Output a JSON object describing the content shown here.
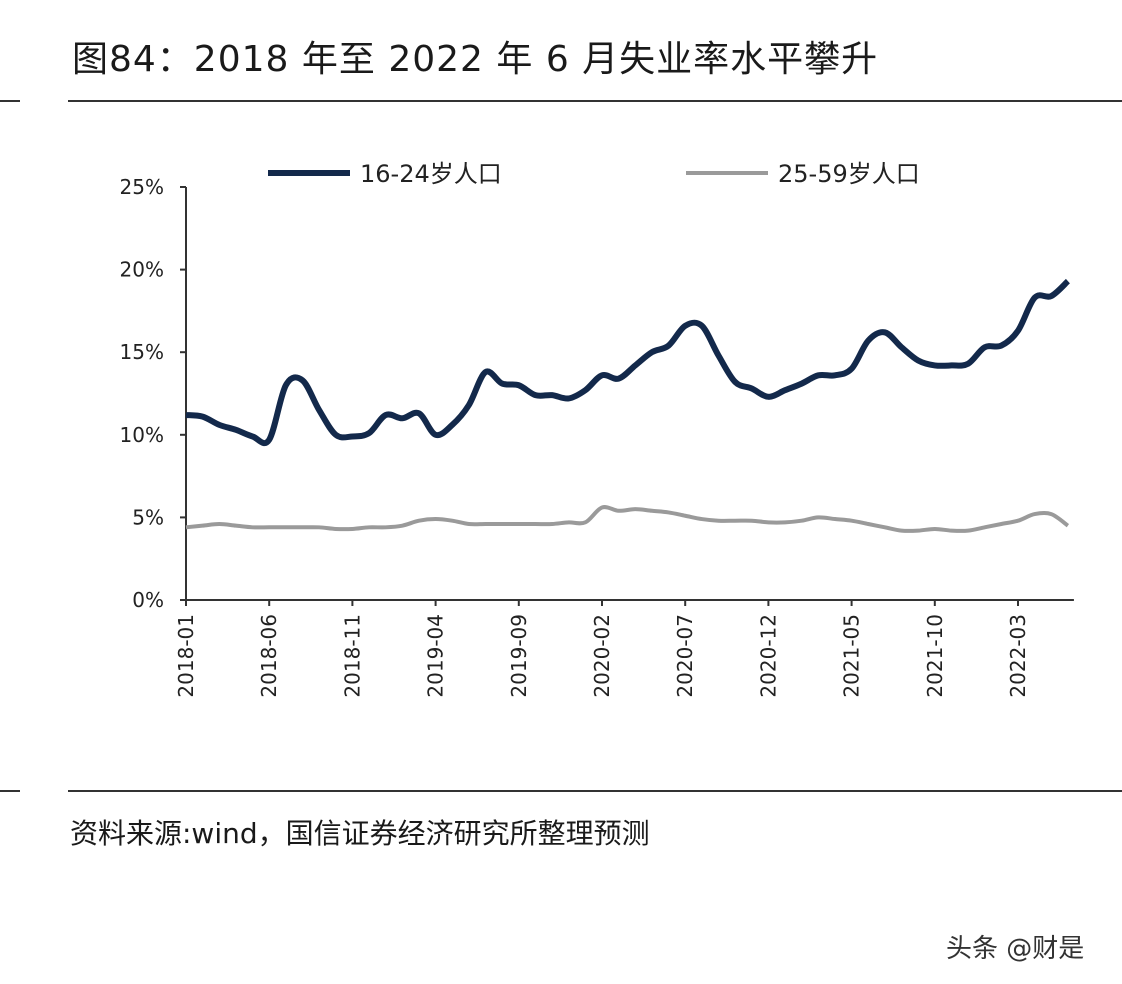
{
  "title": "图84：2018 年至 2022 年 6 月失业率水平攀升",
  "source": "资料来源:wind，国信证券经济研究所整理预测",
  "watermark": "头条 @财是",
  "chart_data": {
    "type": "line",
    "ylim": [
      0,
      25
    ],
    "yticks": [
      "0%",
      "5%",
      "10%",
      "15%",
      "20%",
      "25%"
    ],
    "ytick_values": [
      0,
      5,
      10,
      15,
      20,
      25
    ],
    "xticks": [
      "2018-01",
      "2018-06",
      "2018-11",
      "2019-04",
      "2019-09",
      "2020-02",
      "2020-07",
      "2020-12",
      "2021-05",
      "2021-10",
      "2022-03"
    ],
    "x_start": "2018-01",
    "x_end": "2022-06",
    "legend_position": "top",
    "grid": false,
    "series": [
      {
        "name": "16-24岁人口",
        "color": "#13294b",
        "values": [
          11.2,
          11.1,
          10.6,
          10.3,
          9.9,
          9.7,
          13.0,
          13.3,
          11.5,
          10.0,
          9.9,
          10.1,
          11.2,
          11.0,
          11.3,
          10.0,
          10.6,
          11.8,
          13.8,
          13.1,
          13.0,
          12.4,
          12.4,
          12.2,
          12.7,
          13.6,
          13.4,
          14.2,
          15.0,
          15.4,
          16.6,
          16.6,
          14.8,
          13.2,
          12.8,
          12.3,
          12.7,
          13.1,
          13.6,
          13.6,
          14.0,
          15.7,
          16.2,
          15.3,
          14.5,
          14.2,
          14.2,
          14.3,
          15.3,
          15.4,
          16.3,
          18.3,
          18.4,
          19.3
        ]
      },
      {
        "name": "25-59岁人口",
        "color": "#9a9a9a",
        "values": [
          4.4,
          4.5,
          4.6,
          4.5,
          4.4,
          4.4,
          4.4,
          4.4,
          4.4,
          4.3,
          4.3,
          4.4,
          4.4,
          4.5,
          4.8,
          4.9,
          4.8,
          4.6,
          4.6,
          4.6,
          4.6,
          4.6,
          4.6,
          4.7,
          4.7,
          5.6,
          5.4,
          5.5,
          5.4,
          5.3,
          5.1,
          4.9,
          4.8,
          4.8,
          4.8,
          4.7,
          4.7,
          4.8,
          5.0,
          4.9,
          4.8,
          4.6,
          4.4,
          4.2,
          4.2,
          4.3,
          4.2,
          4.2,
          4.4,
          4.6,
          4.8,
          5.2,
          5.2,
          4.5
        ]
      }
    ]
  }
}
